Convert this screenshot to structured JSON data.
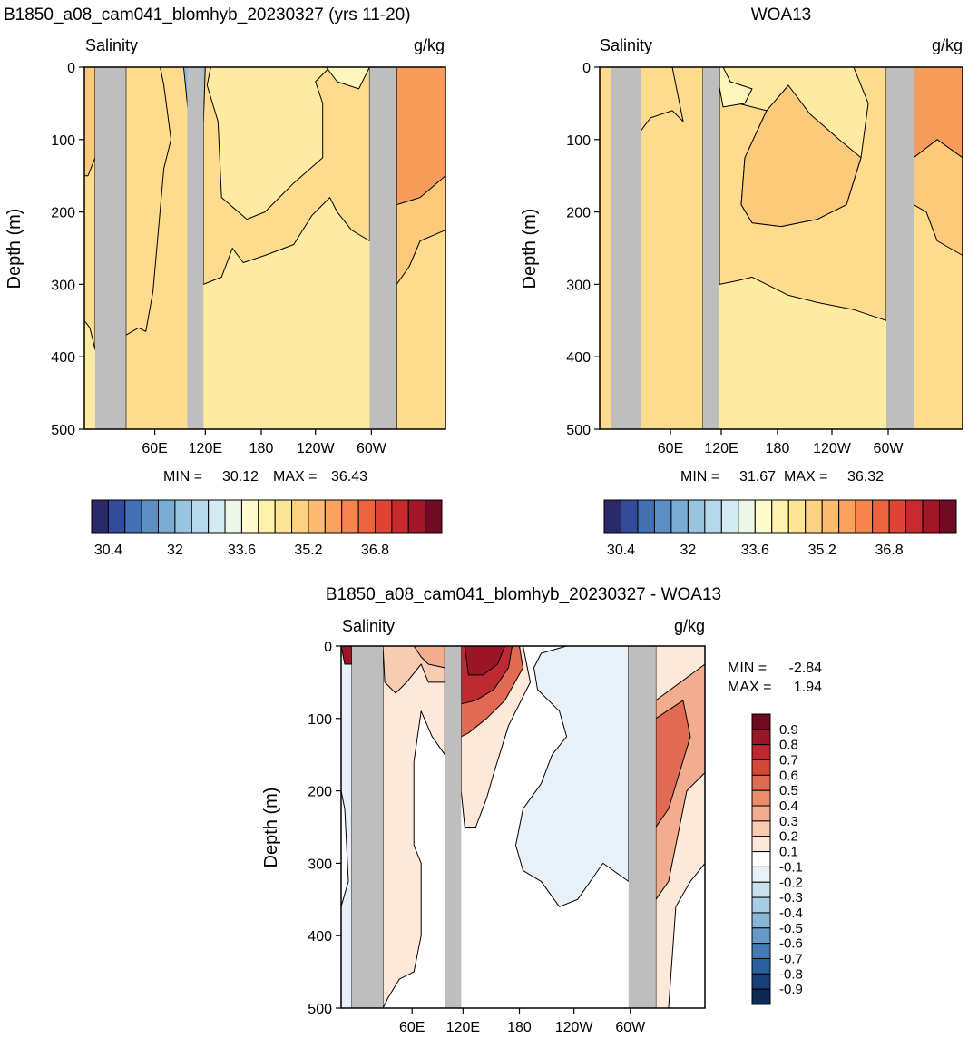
{
  "chart_data": [
    {
      "type": "heatmap",
      "title": "B1850_a08_cam041_blomhyb_20230327 (yrs 11-20)",
      "left_label": "Salinity",
      "right_label": "g/kg",
      "ylabel": "Depth (m)",
      "ylim": [
        0,
        500
      ],
      "y_ticks": [
        0,
        100,
        200,
        300,
        400,
        500
      ],
      "x_ticks": [
        "60E",
        "120E",
        "180",
        "120W",
        "60W"
      ],
      "stats": {
        "min_label": "MIN =",
        "min": "30.12",
        "max_label": "MAX =",
        "max": "36.43"
      },
      "colorbar": {
        "labels": [
          "30.4",
          "32",
          "33.6",
          "35.2",
          "36.8"
        ],
        "colors": [
          "#2a2a6a",
          "#324b9a",
          "#4171b4",
          "#5b8fc4",
          "#7aabd3",
          "#98c4df",
          "#b5d9ea",
          "#d3ebf2",
          "#eef7e7",
          "#fdfbcc",
          "#fff2ab",
          "#fee495",
          "#fed081",
          "#fcbb6f",
          "#f9a15d",
          "#f4834c",
          "#ec633e",
          "#de4534",
          "#c72a2c",
          "#a21628",
          "#6f0b22"
        ]
      },
      "fill_colors": {
        "base": "#feeaa0",
        "mid": "#fedb8d",
        "warm": "#fdc97b",
        "hot": "#f79c5a",
        "fresh": "#fff6bd",
        "blue": "#8fb8da",
        "deep": "#3c5ea8",
        "land": "#bebebe"
      }
    },
    {
      "type": "heatmap",
      "title": "WOA13",
      "left_label": "Salinity",
      "right_label": "g/kg",
      "ylabel": "Depth (m)",
      "ylim": [
        0,
        500
      ],
      "y_ticks": [
        0,
        100,
        200,
        300,
        400,
        500
      ],
      "x_ticks": [
        "60E",
        "120E",
        "180",
        "120W",
        "60W"
      ],
      "stats": {
        "min_label": "MIN =",
        "min": "31.67",
        "max_label": "MAX =",
        "max": "36.32"
      },
      "colorbar": {
        "labels": [
          "30.4",
          "32",
          "33.6",
          "35.2",
          "36.8"
        ]
      }
    },
    {
      "type": "heatmap",
      "title": "B1850_a08_cam041_blomhyb_20230327 - WOA13",
      "left_label": "Salinity",
      "right_label": "g/kg",
      "ylabel": "Depth (m)",
      "ylim": [
        0,
        500
      ],
      "y_ticks": [
        0,
        100,
        200,
        300,
        400,
        500
      ],
      "x_ticks": [
        "60E",
        "120E",
        "180",
        "120W",
        "60W"
      ],
      "stats": {
        "min_label": "MIN =",
        "min": "-2.84",
        "max_label": "MAX =",
        "max": "1.94"
      },
      "colorbar": {
        "labels": [
          "0.9",
          "0.8",
          "0.7",
          "0.6",
          "0.5",
          "0.4",
          "0.3",
          "0.2",
          "0.1",
          "-0.1",
          "-0.2",
          "-0.3",
          "-0.4",
          "-0.5",
          "-0.6",
          "-0.7",
          "-0.8",
          "-0.9"
        ],
        "colors": [
          "#6f0b22",
          "#9c1526",
          "#bc2930",
          "#d2493c",
          "#e06b52",
          "#ea8c6c",
          "#f2ad8f",
          "#f8ccb3",
          "#fde8da",
          "#ffffff",
          "#e7f1f7",
          "#c9e0ee",
          "#a9cde4",
          "#88b6d7",
          "#6599c6",
          "#437bb5",
          "#2b5e9f",
          "#183f78",
          "#0d2a55"
        ]
      }
    }
  ]
}
